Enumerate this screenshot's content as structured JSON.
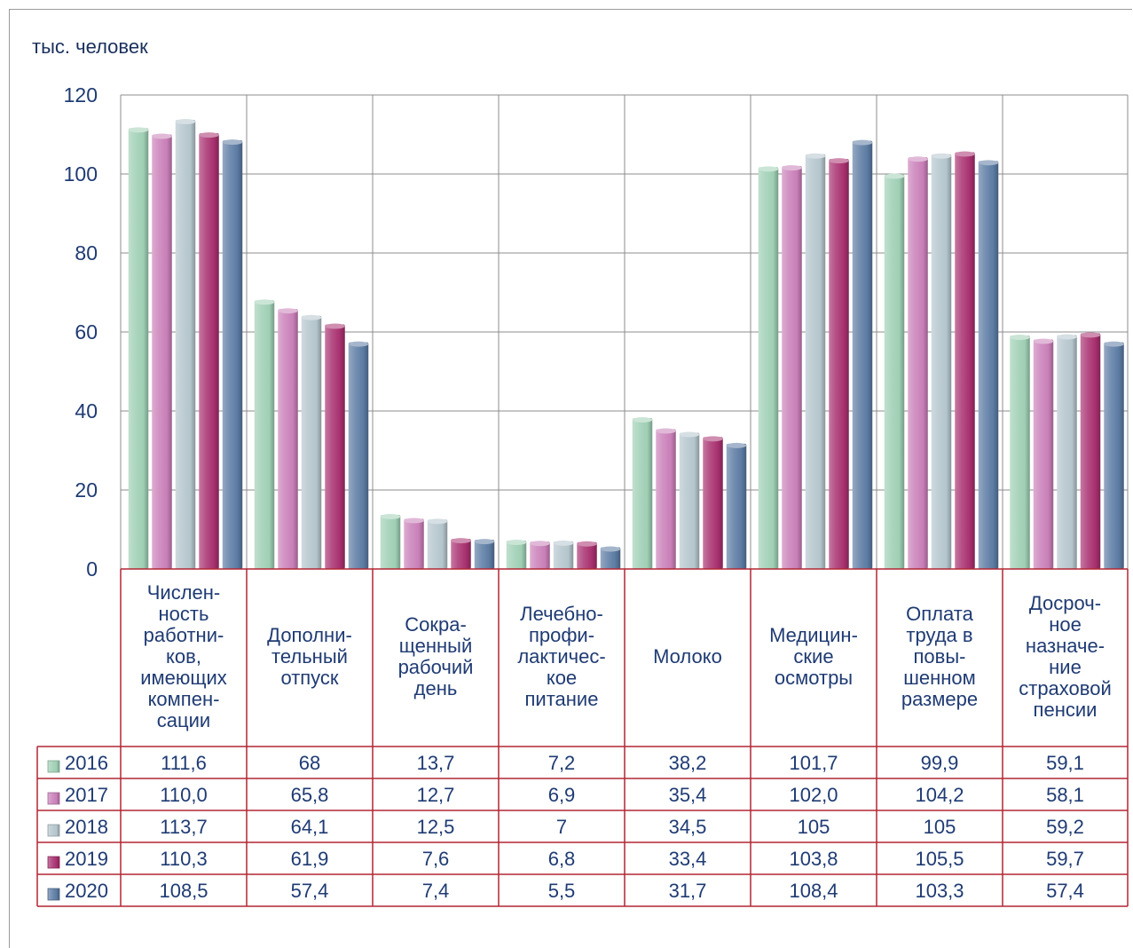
{
  "chart_data": {
    "type": "bar",
    "ylabel": "тыс. человек",
    "ylim": [
      0,
      120
    ],
    "yticks": [
      "0",
      "20",
      "40",
      "60",
      "80",
      "100",
      "120"
    ],
    "grid": true,
    "legend": "table-left",
    "categories": [
      [
        "Числен-",
        "ность",
        "работни-",
        "ков,",
        "имеющих",
        "компен-",
        "сации"
      ],
      [
        "Дополни-",
        "тельный",
        "отпуск"
      ],
      [
        "Сокра-",
        "щенный",
        "рабочий",
        "день"
      ],
      [
        "Лечебно-",
        "профи-",
        "лактичес-",
        "кое",
        "питание"
      ],
      [
        "Молоко"
      ],
      [
        "Медицин-",
        "ские",
        "осмотры"
      ],
      [
        "Оплата",
        "труда в",
        "повы-",
        "шенном",
        "размере"
      ],
      [
        "Досроч-",
        "ное",
        "назначе-",
        "ние",
        "страховой",
        "пенсии"
      ]
    ],
    "series": [
      {
        "name": "2016",
        "color": "#9ecfb4",
        "values": [
          111.6,
          68,
          13.7,
          7.2,
          38.2,
          101.7,
          99.9,
          59.1
        ],
        "labels": [
          "111,6",
          "68",
          "13,7",
          "7,2",
          "38,2",
          "101,7",
          "99,9",
          "59,1"
        ]
      },
      {
        "name": "2017",
        "color": "#c97fb8",
        "values": [
          110.0,
          65.8,
          12.7,
          6.9,
          35.4,
          102.0,
          104.2,
          58.1
        ],
        "labels": [
          "110,0",
          "65,8",
          "12,7",
          "6,9",
          "35,4",
          "102,0",
          "104,2",
          "58,1"
        ]
      },
      {
        "name": "2018",
        "color": "#b4c5cc",
        "values": [
          113.7,
          64.1,
          12.5,
          7,
          34.5,
          105,
          105,
          59.2
        ],
        "labels": [
          "113,7",
          "64,1",
          "12,5",
          "7",
          "34,5",
          "105",
          "105",
          "59,2"
        ]
      },
      {
        "name": "2019",
        "color": "#a8306f",
        "values": [
          110.3,
          61.9,
          7.6,
          6.8,
          33.4,
          103.8,
          105.5,
          59.7
        ],
        "labels": [
          "110,3",
          "61,9",
          "7,6",
          "6,8",
          "33,4",
          "103,8",
          "105,5",
          "59,7"
        ]
      },
      {
        "name": "2020",
        "color": "#5c7ba3",
        "values": [
          108.5,
          57.4,
          7.4,
          5.5,
          31.7,
          108.4,
          103.3,
          57.4
        ],
        "labels": [
          "108,5",
          "57,4",
          "7,4",
          "5,5",
          "31,7",
          "108,4",
          "103,3",
          "57,4"
        ]
      }
    ]
  }
}
